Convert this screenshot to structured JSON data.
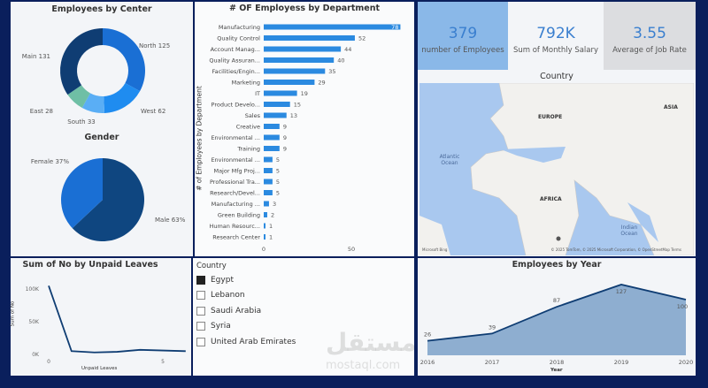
{
  "colors": {
    "bar": "#2b8ae0",
    "navy": "#0f3d73",
    "area": "#8eaed0",
    "kpi1": "#8ab8e8",
    "kpi3": "#dcdde0"
  },
  "center_chart": {
    "title": "Employees by Center",
    "slices": [
      {
        "label": "North 125",
        "value": 125,
        "color": "#1a6fd4"
      },
      {
        "label": "West 62",
        "value": 62,
        "color": "#1f8cf0"
      },
      {
        "label": "South 33",
        "value": 33,
        "color": "#5aaef5"
      },
      {
        "label": "East 28",
        "value": 28,
        "color": "#6fbfa5"
      },
      {
        "label": "Main 131",
        "value": 131,
        "color": "#0f3d73"
      }
    ]
  },
  "gender_chart": {
    "title": "Gender",
    "slices": [
      {
        "label": "Male 63%",
        "value": 63,
        "color": "#0f4680"
      },
      {
        "label": "Female 37%",
        "value": 37,
        "color": "#1a6fd4"
      }
    ]
  },
  "chart_data": [
    {
      "type": "bar",
      "title": "# OF Employess by Department",
      "ylabel": "# of Employees by Department",
      "categories": [
        "Manufacturing",
        "Quality Control",
        "Account Manag...",
        "Quality Assuran...",
        "Facilities/Engin...",
        "Marketing",
        "IT",
        "Product Develo...",
        "Sales",
        "Creative",
        "Environmental ...",
        "Training",
        "Environmental ...",
        "Major Mfg Proj...",
        "Professional Tra...",
        "Research/Devel...",
        "Manufacturing ...",
        "Green Building",
        "Human Resourc...",
        "Research Center"
      ],
      "values": [
        78,
        52,
        44,
        40,
        35,
        29,
        19,
        15,
        13,
        9,
        9,
        9,
        5,
        5,
        5,
        5,
        3,
        2,
        1,
        1
      ],
      "xticks": [
        "0",
        "50"
      ]
    },
    {
      "type": "line",
      "title": "Sum of No by Unpaid Leaves",
      "xlabel": "Unpaid Leaves",
      "ylabel": "Sum of No",
      "x": [
        0,
        1,
        2,
        3,
        4,
        5,
        6
      ],
      "values": [
        105000,
        5000,
        3000,
        4000,
        7000,
        6000,
        5000
      ],
      "yticks": [
        "100K",
        "50K",
        "0K"
      ],
      "xticks": [
        "0",
        "5"
      ]
    },
    {
      "type": "area",
      "title": "Employees by Year",
      "xlabel": "Year",
      "categories": [
        "2016",
        "2017",
        "2018",
        "2019",
        "2020"
      ],
      "values": [
        26,
        39,
        87,
        127,
        100
      ]
    }
  ],
  "kpis": [
    {
      "value": "379",
      "label": "number of Employees"
    },
    {
      "value": "792K",
      "label": "Sum of Monthly Salary"
    },
    {
      "value": "3.55",
      "label": "Average of Job Rate"
    }
  ],
  "map": {
    "title": "Country",
    "labels": {
      "europe": "EUROPE",
      "asia": "ASIA",
      "africa": "AFRICA",
      "atlantic": "Atlantic Ocean",
      "indian": "Indian Ocean"
    },
    "attribution": "© 2025 TomTom, © 2025 Microsoft Corporation, © OpenStreetMap  Terms",
    "logo": "Microsoft Bing"
  },
  "slicer": {
    "title": "Country",
    "items": [
      {
        "label": "Egypt",
        "checked": true
      },
      {
        "label": "Lebanon",
        "checked": false
      },
      {
        "label": "Saudi Arabia",
        "checked": false
      },
      {
        "label": "Syria",
        "checked": false
      },
      {
        "label": "United Arab Emirates",
        "checked": false
      }
    ]
  },
  "watermark": {
    "arabic": "مستقل",
    "latin": "mostaql.com"
  }
}
